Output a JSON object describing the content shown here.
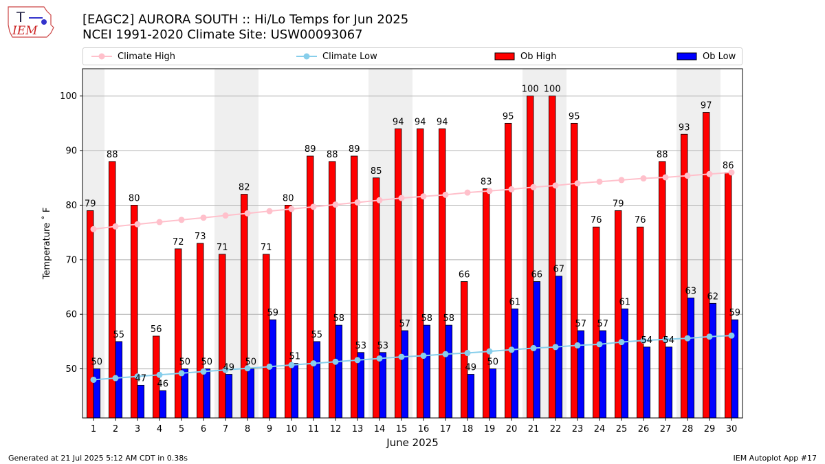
{
  "logo": {
    "text": "IEM"
  },
  "header": {
    "title_line1": "[EAGC2] AURORA SOUTH :: Hi/Lo Temps for Jun 2025",
    "title_line2": "NCEI 1991-2020 Climate Site: USW00093067"
  },
  "footer": {
    "left": "Generated at 21 Jul 2025 5:12 AM CDT in 0.38s",
    "right": "IEM Autoplot App #17"
  },
  "chart_data": {
    "type": "bar",
    "title": "[EAGC2] AURORA SOUTH :: Hi/Lo Temps for Jun 2025",
    "subtitle": "NCEI 1991-2020 Climate Site: USW00093067",
    "xlabel": "June 2025",
    "ylabel": "Temperature ˚ F",
    "ylim": [
      41,
      105
    ],
    "yticks": [
      50,
      60,
      70,
      80,
      90,
      100
    ],
    "grid": "horizontal",
    "legend_position": "top",
    "categories": [
      "1",
      "2",
      "3",
      "4",
      "5",
      "6",
      "7",
      "8",
      "9",
      "10",
      "11",
      "12",
      "13",
      "14",
      "15",
      "16",
      "17",
      "18",
      "19",
      "20",
      "21",
      "22",
      "23",
      "24",
      "25",
      "26",
      "27",
      "28",
      "29",
      "30"
    ],
    "weekend_days": [
      1,
      7,
      8,
      14,
      15,
      21,
      22,
      28,
      29
    ],
    "series": [
      {
        "name": "Ob High",
        "kind": "bar",
        "color": "#ff0000",
        "values": [
          79,
          88,
          80,
          56,
          72,
          73,
          71,
          82,
          71,
          80,
          89,
          88,
          89,
          85,
          94,
          94,
          94,
          66,
          83,
          95,
          100,
          100,
          95,
          76,
          79,
          76,
          88,
          93,
          97,
          86
        ]
      },
      {
        "name": "Ob Low",
        "kind": "bar",
        "color": "#0000ff",
        "values": [
          50,
          55,
          47,
          46,
          50,
          50,
          49,
          50,
          59,
          51,
          55,
          58,
          53,
          53,
          57,
          58,
          58,
          49,
          50,
          61,
          66,
          67,
          57,
          57,
          61,
          54,
          54,
          63,
          62,
          59
        ]
      },
      {
        "name": "Climate High",
        "kind": "line",
        "color": "#ffc0cb",
        "values": [
          75.6,
          76.1,
          76.5,
          76.9,
          77.3,
          77.7,
          78.1,
          78.5,
          78.9,
          79.3,
          79.7,
          80.1,
          80.5,
          80.9,
          81.3,
          81.6,
          81.9,
          82.3,
          82.6,
          82.9,
          83.3,
          83.6,
          84.0,
          84.3,
          84.6,
          84.9,
          85.1,
          85.4,
          85.7,
          86.0
        ]
      },
      {
        "name": "Climate Low",
        "kind": "line",
        "color": "#87ceeb",
        "values": [
          48.0,
          48.3,
          48.6,
          48.9,
          49.2,
          49.5,
          49.8,
          50.1,
          50.4,
          50.7,
          51.0,
          51.3,
          51.6,
          51.9,
          52.2,
          52.4,
          52.7,
          52.9,
          53.2,
          53.5,
          53.8,
          54.0,
          54.3,
          54.5,
          54.9,
          55.2,
          55.4,
          55.6,
          55.9,
          56.1
        ]
      }
    ]
  }
}
